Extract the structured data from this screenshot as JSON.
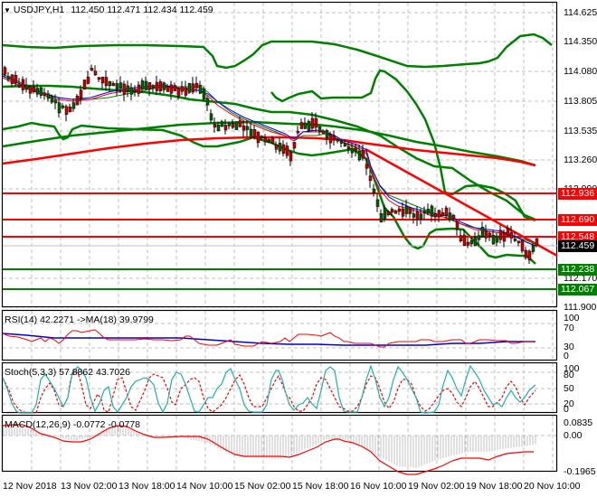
{
  "header": {
    "symbol": "USDJPY,H1",
    "ohlc": "112.450 112.471 112.434 112.459",
    "collapse_icon": "triangle-down-icon"
  },
  "colors": {
    "bull_candle": "#006400",
    "bear_candle": "#cc0000",
    "bollinger": "#008000",
    "ma_long_red": "#ff0000",
    "ma_long_green": "#008000",
    "resistance": "#ff0000",
    "support": "#008000",
    "current_price_tag": "#000000",
    "ema_fast": "#0000ff",
    "ema_mid": "#ff0000",
    "ema_slow": "#008000",
    "rsi_line": "#ff0000",
    "rsi_ma": "#0000cc",
    "stoch_main": "#20b2aa",
    "stoch_signal": "#ff0000",
    "macd_hist": "#c0c0c0",
    "macd_signal": "#ff0000",
    "grid": "#c0c0c0"
  },
  "price_axis": {
    "labels": [
      "114.625",
      "114.350",
      "114.080",
      "113.805",
      "113.535",
      "113.260",
      "112.990",
      "112.170",
      "111.900"
    ]
  },
  "price_tags": [
    {
      "label": "112.936",
      "kind": "resistance",
      "color": "#ff0000"
    },
    {
      "label": "112.690",
      "kind": "resistance",
      "color": "#ff0000"
    },
    {
      "label": "112.548",
      "kind": "resistance",
      "color": "#ff0000"
    },
    {
      "label": "112.459",
      "kind": "current",
      "color": "#000000"
    },
    {
      "label": "112.238",
      "kind": "support",
      "color": "#008000"
    },
    {
      "label": "112.067",
      "kind": "support",
      "color": "#008000"
    }
  ],
  "rsi": {
    "title": "RSI(14) 42.2271  ->MA(18) 39.9799",
    "axis": [
      "100",
      "70",
      "30",
      "0"
    ]
  },
  "stoch": {
    "title": "Stoch(5,3,3) 57.8862 43.7026",
    "axis": [
      "100",
      "80",
      "50",
      "20",
      "0"
    ]
  },
  "macd": {
    "title": "MACD(12,26,9) -0.0772 -0.0778",
    "axis": [
      "0.0835",
      "0.00",
      "-0.1965"
    ]
  },
  "time_axis": {
    "labels": [
      "12 Nov 2018",
      "13 Nov 02:00",
      "13 Nov 18:00",
      "14 Nov 10:00",
      "15 Nov 02:00",
      "15 Nov 18:00",
      "16 Nov 10:00",
      "19 Nov 02:00",
      "19 Nov 18:00",
      "20 Nov 10:00"
    ]
  },
  "chart_data": [
    {
      "type": "candlestick",
      "title": "USDJPY,H1",
      "ohlc_last": {
        "open": 112.45,
        "high": 112.471,
        "low": 112.434,
        "close": 112.459
      },
      "ylim": [
        111.82,
        114.72
      ],
      "yticks": [
        114.625,
        114.35,
        114.08,
        113.805,
        113.535,
        113.26,
        112.99,
        112.17,
        111.9
      ],
      "x": [
        "12 Nov 2018",
        "13 Nov 02:00",
        "13 Nov 18:00",
        "14 Nov 10:00",
        "15 Nov 02:00",
        "15 Nov 18:00",
        "16 Nov 10:00",
        "19 Nov 02:00",
        "19 Nov 18:00",
        "20 Nov 10:00"
      ],
      "approx_close_path": [
        113.95,
        113.75,
        113.85,
        113.95,
        113.7,
        113.35,
        113.5,
        113.4,
        112.75,
        112.65,
        112.6,
        112.45
      ],
      "horizontal_levels": {
        "resistance": [
          112.936,
          112.69,
          112.548
        ],
        "support": [
          112.238,
          112.067
        ]
      },
      "trendline": {
        "color": "red",
        "from": [
          "16 Nov 10:00",
          113.35
        ],
        "to": [
          "20 Nov 10:00",
          112.4
        ]
      },
      "overlays": [
        "Bollinger Bands (green)",
        "MA long (red)",
        "MA long (green)",
        "EMA fast (blue)",
        "EMA mid (red)",
        "EMA slow (green)"
      ]
    },
    {
      "type": "line",
      "title": "RSI(14) 42.2271 ->MA(18) 39.9799",
      "ylim": [
        0,
        100
      ],
      "yticks": [
        100,
        70,
        30,
        0
      ],
      "series": [
        {
          "name": "RSI(14)",
          "last": 42.2271,
          "approx": [
            55,
            48,
            45,
            52,
            58,
            47,
            50,
            48,
            52,
            40,
            45,
            42
          ]
        },
        {
          "name": "MA(18)",
          "last": 39.9799,
          "approx": [
            52,
            50,
            48,
            50,
            52,
            50,
            49,
            48,
            44,
            45,
            42,
            40
          ]
        }
      ]
    },
    {
      "type": "line",
      "title": "Stoch(5,3,3) 57.8862 43.7026",
      "ylim": [
        0,
        100
      ],
      "yticks": [
        100,
        80,
        50,
        20,
        0
      ],
      "series": [
        {
          "name": "%K",
          "last": 57.8862
        },
        {
          "name": "%D",
          "last": 43.7026
        }
      ]
    },
    {
      "type": "bar",
      "title": "MACD(12,26,9) -0.0772 -0.0778",
      "ylim": [
        -0.1965,
        0.0835
      ],
      "yticks": [
        0.0835,
        0.0,
        -0.1965
      ],
      "series": [
        {
          "name": "MACD histogram",
          "last": -0.0772
        },
        {
          "name": "Signal",
          "last": -0.0778,
          "approx": [
            0.07,
            0.0,
            -0.04,
            0.02,
            -0.02,
            -0.03,
            -0.03,
            -0.1,
            -0.1,
            0.0,
            -0.19,
            -0.1,
            -0.11,
            -0.08
          ]
        }
      ]
    }
  ]
}
